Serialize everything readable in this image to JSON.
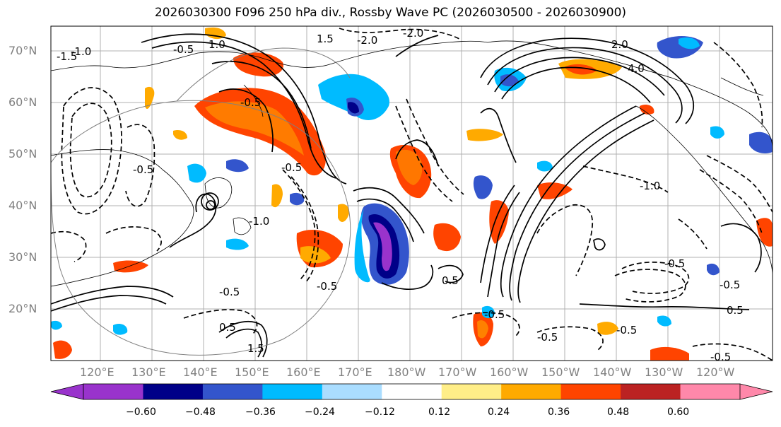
{
  "title": "2026030300 F096 250 hPa div., Rossby Wave PC (2026030500 - 2026030900)",
  "lat_labels": [
    "70°N",
    "60°N",
    "50°N",
    "40°N",
    "30°N",
    "20°N"
  ],
  "lon_labels": [
    "120°E",
    "130°E",
    "140°E",
    "150°E",
    "160°E",
    "170°E",
    "180°W",
    "170°W",
    "160°W",
    "150°W",
    "140°W",
    "130°W",
    "120°W"
  ],
  "colorbar": {
    "colors": [
      "#9933cc",
      "#000088",
      "#3355cc",
      "#00bbff",
      "#aaddff",
      "#ffffff",
      "#ffee88",
      "#ffaa00",
      "#ff4400",
      "#bb2222",
      "#ff88aa"
    ],
    "ticks": [
      "−0.60",
      "−0.48",
      "−0.36",
      "−0.24",
      "−0.12",
      "0.12",
      "0.24",
      "0.36",
      "0.48",
      "0.60"
    ]
  },
  "contour_labels": [
    "-2.0",
    "-2.0",
    "-1.5",
    "1.5",
    "-1.0",
    "-0.5",
    "-0.5",
    "1.0",
    "2.0",
    "4.0",
    "-0.5",
    "-1.0",
    "-0.5",
    "-0.5",
    "0.5",
    "-0.5",
    "0.5",
    "-0.5",
    "-1.0",
    "-0.5",
    "1.5",
    "-0.5",
    "-0.5",
    "-0.5",
    "-0.5",
    "0.5"
  ]
}
